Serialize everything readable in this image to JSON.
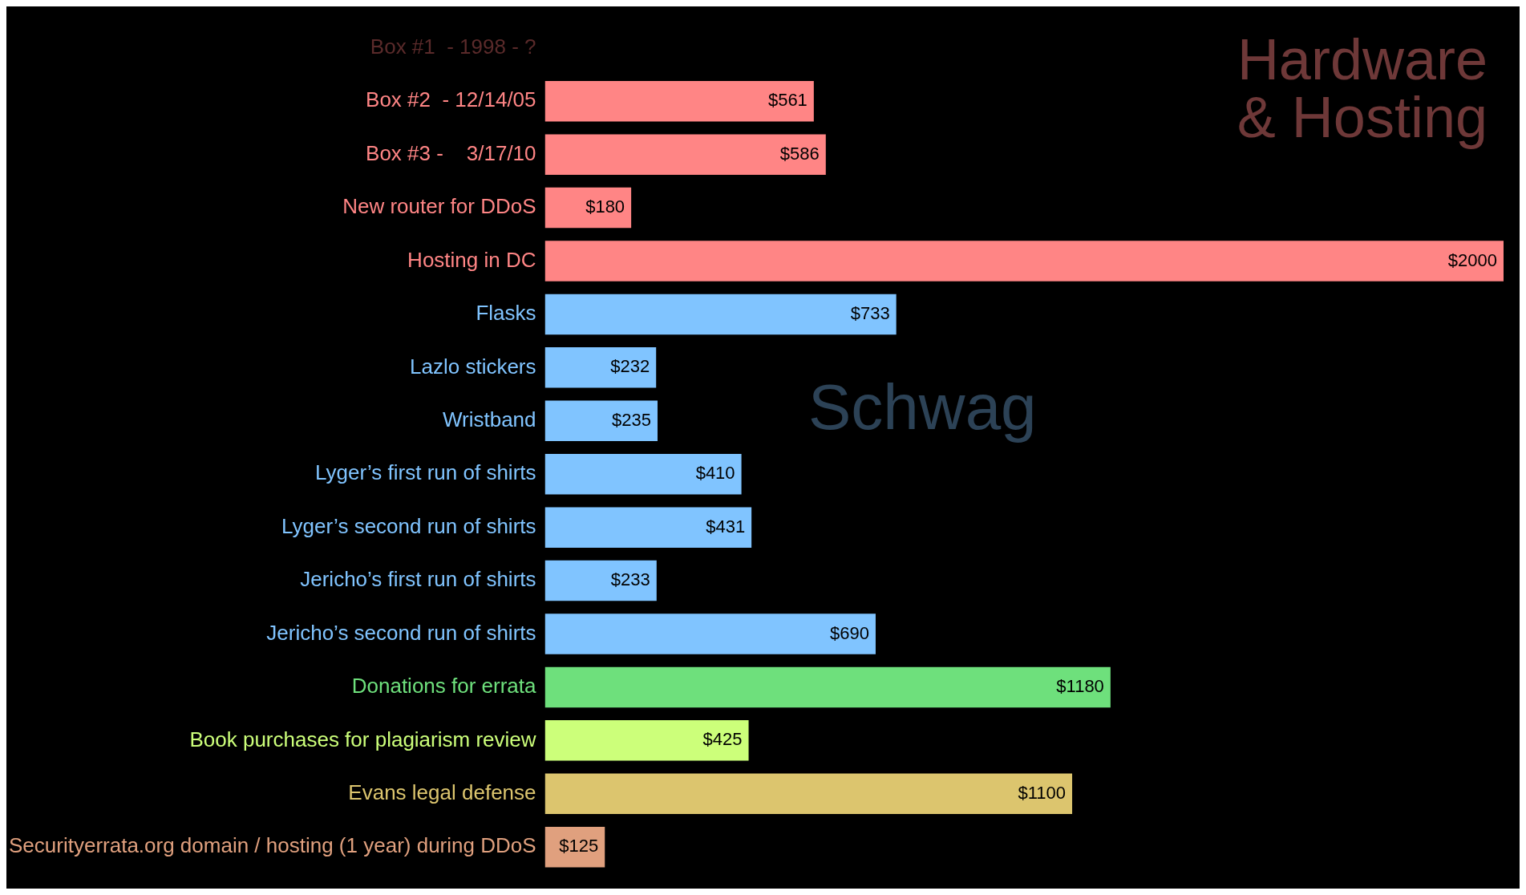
{
  "chart_data": {
    "type": "bar",
    "orientation": "horizontal",
    "categories": [
      "Box #1  - 1998 - ?",
      "Box #2  - 12/14/05",
      "Box #3 -    3/17/10",
      "New router for DDoS",
      "Hosting in DC",
      "Flasks",
      "Lazlo stickers",
      "Wristband",
      "Lyger’s first run of shirts",
      "Lyger’s second run of shirts",
      "Jericho’s first run of shirts",
      "Jericho’s second run of shirts",
      "Donations for errata",
      "Book purchases for plagiarism review",
      "Evans legal defense",
      "Securityerrata.org domain / hosting (1 year) during DDoS"
    ],
    "values": [
      null,
      561,
      586,
      180,
      2000,
      733,
      232,
      235,
      410,
      431,
      233,
      690,
      1180,
      425,
      1100,
      125
    ],
    "value_labels": [
      null,
      "$561",
      "$586",
      "$180",
      "$2000",
      "$733",
      "$232",
      "$235",
      "$410",
      "$431",
      "$233",
      "$690",
      "$1180",
      "$425",
      "$1100",
      "$125"
    ],
    "colors": [
      "#5a2a2a",
      "#ff8585",
      "#ff8585",
      "#ff8585",
      "#ff8585",
      "#80c4ff",
      "#80c4ff",
      "#80c4ff",
      "#80c4ff",
      "#80c4ff",
      "#80c4ff",
      "#80c4ff",
      "#6ee07c",
      "#ccff7a",
      "#dcc56e",
      "#e0a07e"
    ],
    "xlim": [
      0,
      2000
    ],
    "tick_labels": "y",
    "legend": false,
    "annotations": [
      "Hardware & Hosting",
      "Schwag"
    ]
  }
}
